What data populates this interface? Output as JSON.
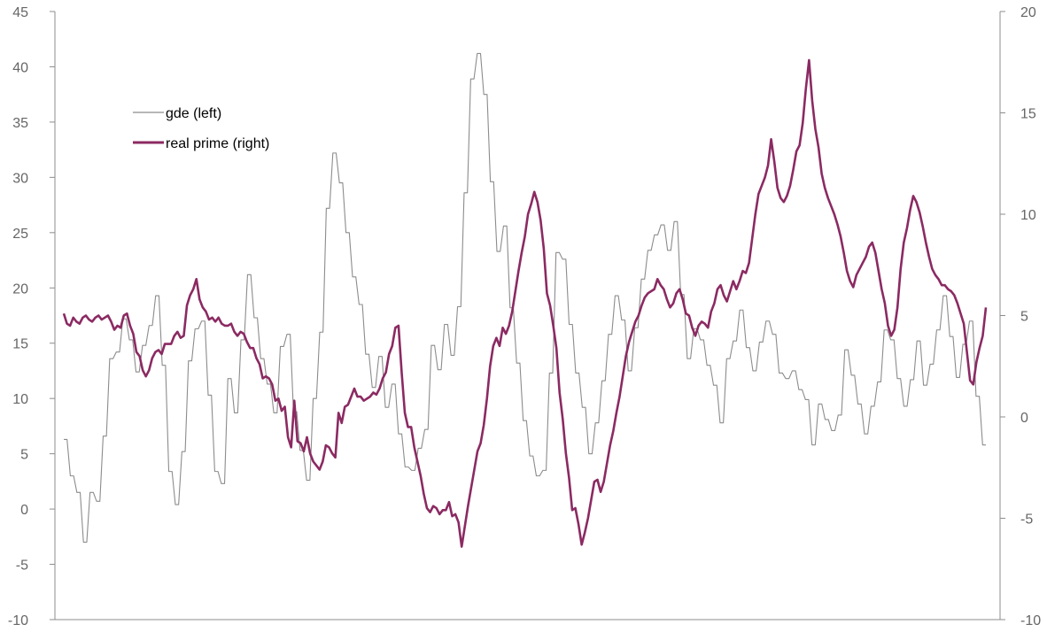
{
  "chart_data": {
    "type": "line",
    "left_axis": {
      "ylim": [
        -10,
        45
      ],
      "ticks": [
        -10,
        -5,
        0,
        5,
        10,
        15,
        20,
        25,
        30,
        35,
        40,
        45
      ]
    },
    "right_axis": {
      "ylim": [
        -10,
        20
      ],
      "ticks": [
        -10,
        -5,
        0,
        5,
        10,
        15,
        20
      ]
    },
    "grid": false,
    "legend_placement": "top-left",
    "series": [
      {
        "name": "gde (left)",
        "axis": "left",
        "color": "#8c8c8c",
        "step": true,
        "values": [
          6.3,
          6.3,
          3.0,
          3.0,
          1.5,
          1.5,
          -3.0,
          -3.0,
          1.5,
          1.5,
          0.7,
          0.7,
          6.6,
          6.6,
          13.6,
          13.6,
          14.2,
          14.2,
          17.2,
          17.2,
          15.3,
          15.3,
          12.4,
          12.4,
          14.8,
          14.8,
          16.6,
          16.6,
          19.3,
          19.3,
          13.0,
          13.0,
          3.4,
          3.4,
          0.4,
          0.4,
          5.2,
          5.2,
          13.4,
          13.4,
          16.3,
          16.3,
          17.0,
          17.0,
          10.3,
          10.3,
          3.4,
          3.4,
          2.3,
          2.3,
          11.8,
          11.8,
          8.7,
          8.7,
          15.3,
          15.3,
          21.2,
          21.2,
          17.3,
          17.3,
          13.6,
          13.6,
          11.3,
          11.3,
          8.7,
          8.7,
          14.7,
          14.7,
          15.8,
          15.8,
          8.8,
          8.8,
          5.3,
          5.3,
          2.6,
          2.6,
          10.0,
          10.0,
          16.0,
          16.0,
          27.2,
          27.2,
          32.2,
          32.2,
          29.5,
          29.5,
          25.0,
          25.0,
          21.0,
          21.0,
          18.5,
          18.5,
          14.0,
          14.0,
          11.0,
          11.0,
          13.8,
          13.8,
          9.2,
          9.2,
          11.3,
          11.3,
          6.8,
          6.8,
          3.8,
          3.8,
          3.5,
          3.5,
          5.5,
          5.5,
          7.2,
          7.2,
          14.8,
          14.8,
          12.6,
          12.6,
          16.7,
          16.7,
          13.9,
          13.9,
          18.3,
          18.3,
          28.6,
          28.6,
          38.9,
          38.9,
          41.2,
          41.2,
          37.5,
          37.5,
          29.6,
          29.6,
          23.3,
          23.3,
          25.6,
          25.6,
          18.2,
          18.2,
          13.2,
          13.2,
          8.0,
          8.0,
          4.8,
          4.8,
          3.0,
          3.0,
          3.5,
          3.5,
          12.3,
          12.3,
          23.2,
          23.2,
          22.6,
          22.6,
          16.7,
          16.7,
          12.3,
          12.3,
          9.2,
          9.2,
          5.0,
          5.0,
          7.8,
          7.8,
          11.6,
          11.6,
          15.8,
          15.8,
          19.3,
          19.3,
          17.1,
          17.1,
          12.5,
          12.5,
          16.4,
          16.4,
          20.8,
          20.8,
          23.4,
          23.4,
          24.8,
          24.8,
          25.7,
          25.7,
          23.4,
          23.4,
          26.0,
          26.0,
          19.4,
          19.4,
          13.6,
          13.6,
          16.3,
          16.3,
          15.3,
          15.3,
          13.0,
          13.0,
          11.2,
          11.2,
          7.8,
          7.8,
          13.6,
          13.6,
          15.2,
          15.2,
          18.0,
          18.0,
          14.6,
          14.6,
          12.5,
          12.5,
          15.1,
          15.1,
          17.0,
          17.0,
          15.8,
          15.8,
          12.3,
          12.3,
          11.8,
          11.8,
          12.5,
          12.5,
          10.8,
          10.8,
          9.9,
          9.9,
          5.8,
          5.8,
          9.5,
          9.5,
          8.1,
          8.1,
          7.1,
          7.1,
          8.5,
          8.5,
          14.4,
          14.4,
          12.1,
          12.1,
          9.5,
          9.5,
          6.8,
          6.8,
          9.3,
          9.3,
          11.5,
          11.5,
          16.2,
          16.2,
          15.3,
          15.3,
          11.8,
          11.8,
          9.3,
          9.3,
          11.7,
          11.7,
          15.2,
          15.2,
          11.2,
          11.2,
          13.1,
          13.1,
          16.2,
          16.2,
          19.3,
          19.3,
          15.6,
          15.6,
          11.9,
          11.9,
          14.9,
          14.9,
          17.0,
          17.0,
          10.2,
          10.2,
          5.8,
          5.8
        ]
      },
      {
        "name": "real prime (right)",
        "axis": "right",
        "color": "#8b2a62",
        "step": false,
        "values": [
          5.1,
          4.6,
          4.5,
          4.9,
          4.7,
          4.6,
          4.9,
          5.0,
          4.8,
          4.7,
          4.9,
          5.0,
          4.8,
          4.9,
          5.0,
          4.7,
          4.3,
          4.5,
          4.4,
          5.0,
          5.1,
          4.5,
          4.1,
          3.2,
          3.0,
          2.3,
          2.0,
          2.3,
          2.9,
          3.2,
          3.3,
          3.1,
          3.6,
          3.6,
          3.6,
          4.0,
          4.2,
          3.9,
          4.0,
          5.5,
          6.0,
          6.3,
          6.8,
          5.8,
          5.4,
          5.2,
          4.8,
          4.9,
          4.7,
          4.9,
          4.6,
          4.5,
          4.5,
          4.6,
          4.2,
          4.0,
          4.2,
          4.1,
          3.7,
          3.4,
          3.4,
          2.9,
          2.6,
          1.9,
          2.0,
          1.9,
          1.6,
          0.8,
          0.9,
          0.3,
          0.5,
          -1.0,
          -1.5,
          0.8,
          -1.2,
          -1.3,
          -1.7,
          -1.0,
          -1.8,
          -2.2,
          -2.4,
          -2.6,
          -2.2,
          -1.4,
          -1.5,
          -1.8,
          -2.0,
          0.2,
          -0.3,
          0.5,
          0.6,
          1.0,
          1.4,
          1.0,
          1.0,
          0.8,
          0.9,
          1.0,
          1.2,
          1.1,
          1.4,
          1.9,
          2.2,
          3.1,
          3.5,
          4.4,
          4.5,
          2.2,
          0.2,
          -0.5,
          -0.5,
          -1.5,
          -2.2,
          -2.9,
          -3.8,
          -4.5,
          -4.7,
          -4.4,
          -4.5,
          -4.8,
          -4.6,
          -4.6,
          -4.2,
          -4.9,
          -4.8,
          -5.2,
          -6.4,
          -5.4,
          -4.4,
          -3.5,
          -2.6,
          -1.7,
          -1.3,
          -0.4,
          0.9,
          2.5,
          3.5,
          3.9,
          3.5,
          4.4,
          4.1,
          4.5,
          5.2,
          6.2,
          7.2,
          8.1,
          8.9,
          10.0,
          10.5,
          11.1,
          10.6,
          9.7,
          8.3,
          6.1,
          5.5,
          4.5,
          3.4,
          1.2,
          -0.1,
          -1.8,
          -3.0,
          -4.6,
          -4.5,
          -5.3,
          -6.3,
          -5.7,
          -5.0,
          -4.1,
          -3.2,
          -3.1,
          -3.7,
          -3.2,
          -2.3,
          -1.4,
          -0.7,
          0.2,
          1.0,
          2.0,
          3.0,
          3.7,
          4.2,
          4.7,
          5.0,
          5.5,
          5.9,
          6.1,
          6.2,
          6.3,
          6.8,
          6.5,
          6.3,
          5.8,
          5.4,
          5.6,
          6.1,
          6.3,
          5.8,
          5.1,
          5.0,
          4.4,
          4.0,
          4.5,
          4.7,
          4.6,
          4.4,
          5.2,
          5.6,
          6.3,
          6.5,
          6.0,
          5.7,
          6.2,
          6.7,
          6.3,
          6.7,
          7.2,
          7.1,
          7.6,
          8.8,
          10.0,
          11.0,
          11.4,
          11.8,
          12.4,
          13.7,
          12.6,
          11.3,
          10.8,
          10.6,
          10.9,
          11.4,
          12.2,
          13.1,
          13.4,
          14.5,
          16.2,
          17.6,
          15.6,
          14.2,
          13.3,
          12.0,
          11.3,
          10.8,
          10.4,
          10.0,
          9.5,
          8.9,
          8.1,
          7.2,
          6.7,
          6.4,
          7.0,
          7.3,
          7.6,
          7.9,
          8.4,
          8.6,
          8.1,
          7.2,
          6.3,
          5.6,
          4.5,
          4.0,
          4.3,
          5.4,
          7.3,
          8.6,
          9.3,
          10.2,
          10.9,
          10.6,
          10.1,
          9.4,
          8.6,
          7.9,
          7.3,
          7.0,
          6.8,
          6.5,
          6.5,
          6.3,
          6.2,
          6.0,
          5.6,
          5.1,
          4.6,
          3.2,
          1.8,
          1.6,
          2.7,
          3.4,
          4.0,
          5.4
        ]
      }
    ]
  }
}
